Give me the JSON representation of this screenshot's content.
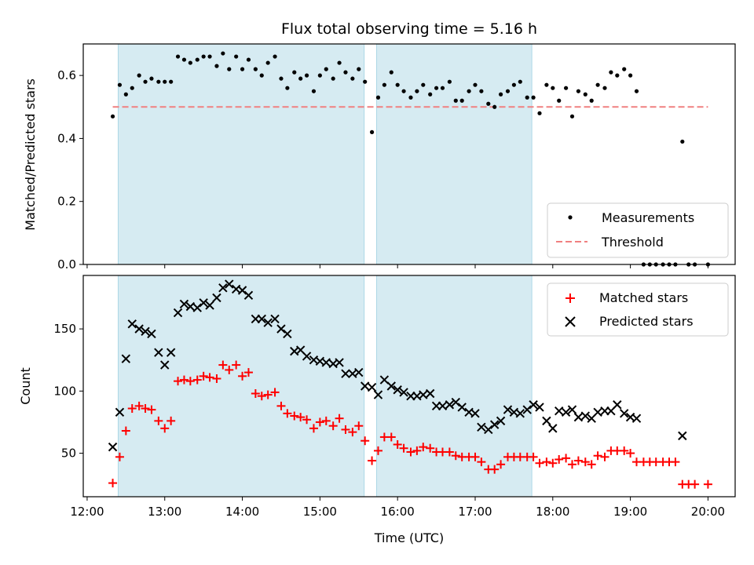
{
  "chart_data": [
    {
      "type": "scatter",
      "title": "Flux total observing time = 5.16 h",
      "xlabel": "",
      "ylabel": "Matched/Predicted stars",
      "xlim": [
        11.95,
        20.35
      ],
      "ylim": [
        0.0,
        0.7
      ],
      "yticks": [
        0.0,
        0.2,
        0.4,
        0.6
      ],
      "shaded_spans": [
        [
          12.4,
          15.57
        ],
        [
          15.73,
          17.73
        ]
      ],
      "legend": "lower-right",
      "threshold": {
        "name": "Threshold",
        "y": 0.5,
        "x_range": [
          12.33,
          20.0
        ],
        "color": "#f08080"
      },
      "series": [
        {
          "name": "Measurements",
          "color": "#000000",
          "x": [
            12.33,
            12.42,
            12.5,
            12.58,
            12.67,
            12.75,
            12.83,
            12.92,
            13.0,
            13.08,
            13.17,
            13.25,
            13.33,
            13.42,
            13.5,
            13.58,
            13.67,
            13.75,
            13.83,
            13.92,
            14.0,
            14.08,
            14.17,
            14.25,
            14.33,
            14.42,
            14.5,
            14.58,
            14.67,
            14.75,
            14.83,
            14.92,
            15.0,
            15.08,
            15.17,
            15.25,
            15.33,
            15.42,
            15.5,
            15.58,
            15.67,
            15.75,
            15.83,
            15.92,
            16.0,
            16.08,
            16.17,
            16.25,
            16.33,
            16.42,
            16.5,
            16.58,
            16.67,
            16.75,
            16.83,
            16.92,
            17.0,
            17.08,
            17.17,
            17.25,
            17.33,
            17.42,
            17.5,
            17.58,
            17.67,
            17.75,
            17.83,
            17.92,
            18.0,
            18.08,
            18.17,
            18.25,
            18.33,
            18.42,
            18.5,
            18.58,
            18.67,
            18.75,
            18.83,
            18.92,
            19.0,
            19.08,
            19.17,
            19.25,
            19.33,
            19.42,
            19.5,
            19.58,
            19.67,
            19.75,
            19.83,
            20.0
          ],
          "y": [
            0.47,
            0.57,
            0.54,
            0.56,
            0.6,
            0.58,
            0.59,
            0.58,
            0.58,
            0.58,
            0.66,
            0.65,
            0.64,
            0.65,
            0.66,
            0.66,
            0.63,
            0.67,
            0.62,
            0.66,
            0.62,
            0.65,
            0.62,
            0.6,
            0.64,
            0.66,
            0.59,
            0.56,
            0.61,
            0.59,
            0.6,
            0.55,
            0.6,
            0.62,
            0.59,
            0.64,
            0.61,
            0.59,
            0.62,
            0.58,
            0.42,
            0.53,
            0.57,
            0.61,
            0.57,
            0.55,
            0.53,
            0.55,
            0.57,
            0.54,
            0.56,
            0.56,
            0.58,
            0.52,
            0.52,
            0.55,
            0.57,
            0.55,
            0.51,
            0.5,
            0.54,
            0.55,
            0.57,
            0.58,
            0.53,
            0.53,
            0.48,
            0.57,
            0.56,
            0.52,
            0.56,
            0.47,
            0.55,
            0.54,
            0.52,
            0.57,
            0.56,
            0.61,
            0.6,
            0.62,
            0.6,
            0.55,
            0.0,
            0.0,
            0.0,
            0.0,
            0.0,
            0.0,
            0.39,
            0.0,
            0.0,
            0.0
          ]
        }
      ],
      "legend_entries": [
        "Measurements",
        "Threshold"
      ]
    },
    {
      "type": "scatter",
      "title": "",
      "xlabel": "Time (UTC)",
      "ylabel": "Count",
      "xlim": [
        11.95,
        20.35
      ],
      "ylim": [
        15,
        193
      ],
      "yticks": [
        50,
        100,
        150
      ],
      "xticks": [
        12,
        13,
        14,
        15,
        16,
        17,
        18,
        19,
        20
      ],
      "xtick_labels": [
        "12:00",
        "13:00",
        "14:00",
        "15:00",
        "16:00",
        "17:00",
        "18:00",
        "19:00",
        "20:00"
      ],
      "shaded_spans": [
        [
          12.4,
          15.57
        ],
        [
          15.73,
          17.73
        ]
      ],
      "legend": "upper-right",
      "series": [
        {
          "name": "Matched stars",
          "marker": "plus",
          "color": "#ff0000",
          "x": [
            12.33,
            12.42,
            12.5,
            12.58,
            12.67,
            12.75,
            12.83,
            12.92,
            13.0,
            13.08,
            13.17,
            13.25,
            13.33,
            13.42,
            13.5,
            13.58,
            13.67,
            13.75,
            13.83,
            13.92,
            14.0,
            14.08,
            14.17,
            14.25,
            14.33,
            14.42,
            14.5,
            14.58,
            14.67,
            14.75,
            14.83,
            14.92,
            15.0,
            15.08,
            15.17,
            15.25,
            15.33,
            15.42,
            15.5,
            15.58,
            15.67,
            15.75,
            15.83,
            15.92,
            16.0,
            16.08,
            16.17,
            16.25,
            16.33,
            16.42,
            16.5,
            16.58,
            16.67,
            16.75,
            16.83,
            16.92,
            17.0,
            17.08,
            17.17,
            17.25,
            17.33,
            17.42,
            17.5,
            17.58,
            17.67,
            17.75,
            17.83,
            17.92,
            18.0,
            18.08,
            18.17,
            18.25,
            18.33,
            18.42,
            18.5,
            18.58,
            18.67,
            18.75,
            18.83,
            18.92,
            19.0,
            19.08,
            19.17,
            19.25,
            19.33,
            19.42,
            19.5,
            19.58,
            19.67,
            19.75,
            19.83,
            20.0
          ],
          "y": [
            26,
            47,
            68,
            86,
            88,
            86,
            85,
            76,
            70,
            76,
            108,
            109,
            108,
            109,
            112,
            111,
            110,
            121,
            117,
            121,
            112,
            115,
            98,
            96,
            97,
            99,
            88,
            82,
            80,
            79,
            77,
            70,
            75,
            76,
            72,
            78,
            69,
            67,
            72,
            60,
            44,
            52,
            63,
            63,
            57,
            54,
            51,
            52,
            55,
            54,
            51,
            51,
            51,
            48,
            47,
            47,
            47,
            43,
            37,
            37,
            41,
            47,
            47,
            47,
            47,
            47,
            42,
            43,
            42,
            45,
            46,
            41,
            44,
            43,
            41,
            48,
            47,
            52,
            52,
            52,
            50,
            43,
            43,
            43,
            43,
            43,
            43,
            43,
            25,
            25,
            25,
            25
          ]
        },
        {
          "name": "Predicted stars",
          "marker": "x",
          "color": "#000000",
          "x": [
            12.33,
            12.42,
            12.5,
            12.58,
            12.67,
            12.75,
            12.83,
            12.92,
            13.0,
            13.08,
            13.17,
            13.25,
            13.33,
            13.42,
            13.5,
            13.58,
            13.67,
            13.75,
            13.83,
            13.92,
            14.0,
            14.08,
            14.17,
            14.25,
            14.33,
            14.42,
            14.5,
            14.58,
            14.67,
            14.75,
            14.83,
            14.92,
            15.0,
            15.08,
            15.17,
            15.25,
            15.33,
            15.42,
            15.5,
            15.58,
            15.67,
            15.75,
            15.83,
            15.92,
            16.0,
            16.08,
            16.17,
            16.25,
            16.33,
            16.42,
            16.5,
            16.58,
            16.67,
            16.75,
            16.83,
            16.92,
            17.0,
            17.08,
            17.17,
            17.25,
            17.33,
            17.42,
            17.5,
            17.58,
            17.67,
            17.75,
            17.83,
            17.92,
            18.0,
            18.08,
            18.17,
            18.25,
            18.33,
            18.42,
            18.5,
            18.58,
            18.67,
            18.75,
            18.83,
            18.92,
            19.0,
            19.08,
            19.67
          ],
          "y": [
            55,
            83,
            126,
            154,
            150,
            148,
            146,
            131,
            121,
            131,
            163,
            170,
            168,
            167,
            171,
            169,
            175,
            183,
            186,
            182,
            181,
            177,
            158,
            158,
            155,
            158,
            150,
            146,
            132,
            133,
            128,
            125,
            124,
            123,
            122,
            123,
            114,
            114,
            115,
            104,
            103,
            97,
            109,
            104,
            101,
            99,
            96,
            96,
            97,
            98,
            88,
            88,
            89,
            91,
            87,
            83,
            82,
            71,
            69,
            73,
            76,
            85,
            83,
            82,
            85,
            89,
            87,
            76,
            70,
            84,
            83,
            85,
            79,
            80,
            78,
            83,
            84,
            84,
            89,
            82,
            79,
            78,
            64
          ]
        }
      ],
      "legend_entries": [
        "Matched stars",
        "Predicted stars"
      ]
    }
  ]
}
